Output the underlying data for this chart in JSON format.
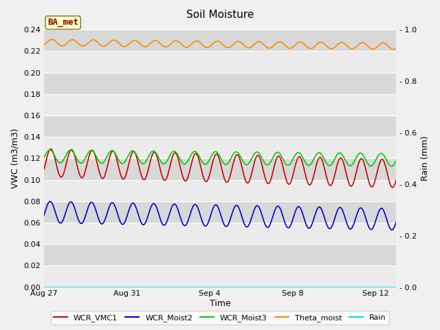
{
  "title": "Soil Moisture",
  "xlabel": "Time",
  "ylabel_left": "VWC (m3/m3)",
  "ylabel_right": "Rain (mm)",
  "ylim_left": [
    0.0,
    0.24
  ],
  "ylim_right": [
    0.0,
    1.0
  ],
  "yticks_left": [
    0.0,
    0.02,
    0.04,
    0.06,
    0.08,
    0.1,
    0.12,
    0.14,
    0.16,
    0.18,
    0.2,
    0.22,
    0.24
  ],
  "yticks_right": [
    0.0,
    0.2,
    0.4,
    0.6,
    0.8,
    1.0
  ],
  "xtick_labels": [
    "Aug 27",
    "Aug 31",
    "Sep 4",
    "Sep 8",
    "Sep 12"
  ],
  "xtick_positions": [
    0,
    4,
    8,
    12,
    16
  ],
  "xlim": [
    0,
    17
  ],
  "annotation": "BA_met",
  "fig_bg_color": "#f0f0f0",
  "plot_bg_color": "#e8e8e8",
  "band_light": "#ebebeb",
  "band_dark": "#d8d8d8",
  "grid_color": "#ffffff",
  "legend_entries": [
    "WCR_VMC1",
    "WCR_Moist2",
    "WCR_Moist3",
    "Theta_moist",
    "Rain"
  ],
  "line_colors": {
    "WCR_VMC1": "#cc0000",
    "WCR_Moist2": "#0000cc",
    "WCR_Moist3": "#00cc00",
    "Theta_moist": "#ff8800",
    "Rain": "#00dddd"
  },
  "title_fontsize": 11,
  "axis_label_fontsize": 9,
  "tick_fontsize": 8,
  "legend_fontsize": 8
}
